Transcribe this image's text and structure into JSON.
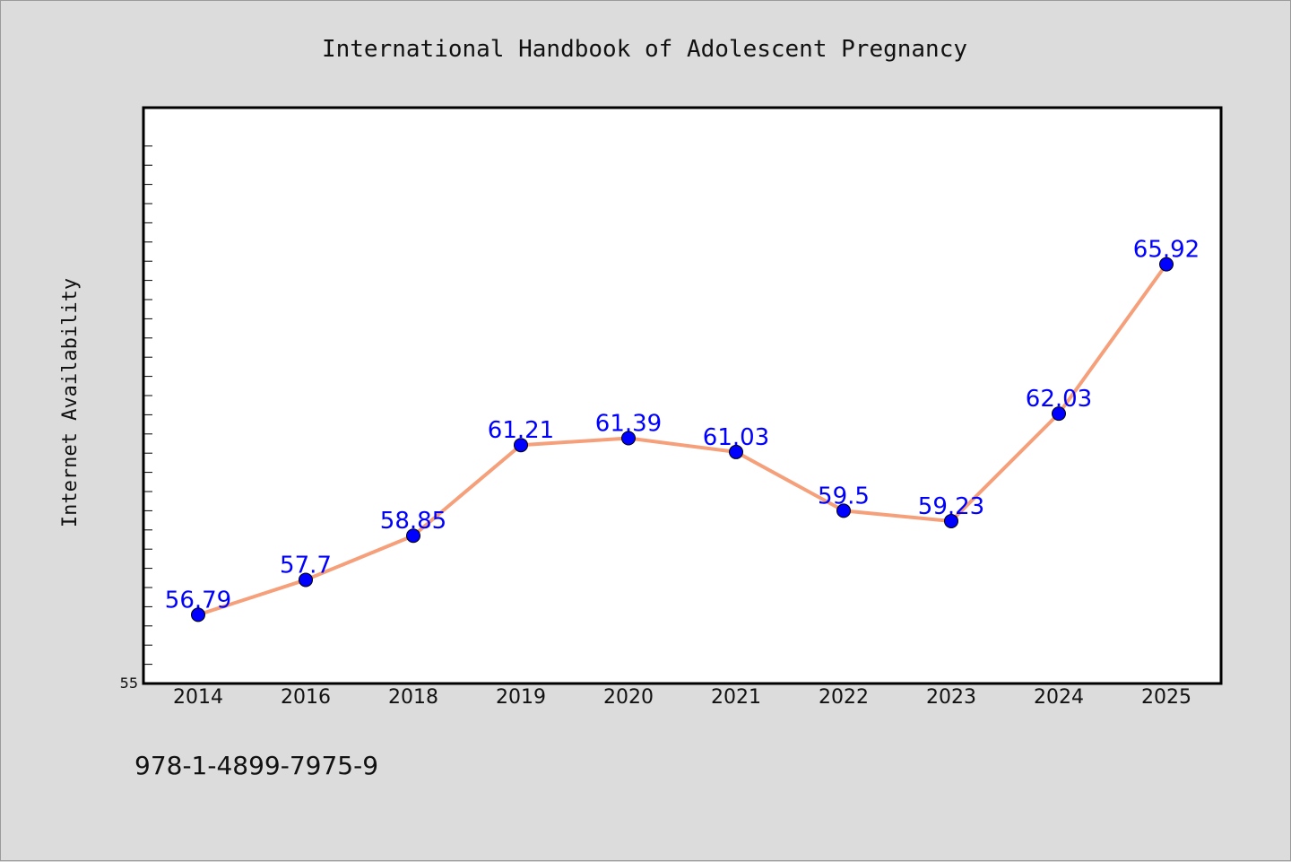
{
  "chart_data": {
    "type": "line",
    "title": "International Handbook of Adolescent Pregnancy",
    "xlabel": "",
    "ylabel": "Internet Availability",
    "categories": [
      "2014",
      "2016",
      "2018",
      "2019",
      "2020",
      "2021",
      "2022",
      "2023",
      "2024",
      "2025"
    ],
    "series": [
      {
        "values": [
          56.79,
          57.7,
          58.85,
          61.21,
          61.39,
          61.03,
          59.5,
          59.23,
          62.03,
          65.92
        ],
        "labels": [
          "56.79",
          "57.7",
          "58.85",
          "61.21",
          "61.39",
          "61.03",
          "59.5",
          "59.23",
          "62.03",
          "65.92"
        ]
      }
    ],
    "ylim": [
      55,
      70
    ],
    "y_tick_label": "55",
    "grid": false,
    "line_color": "#f5a07a",
    "marker_color": "#0000ff",
    "label_color": "#0000ff"
  },
  "footer": {
    "isbn": "978-1-4899-7975-9"
  }
}
